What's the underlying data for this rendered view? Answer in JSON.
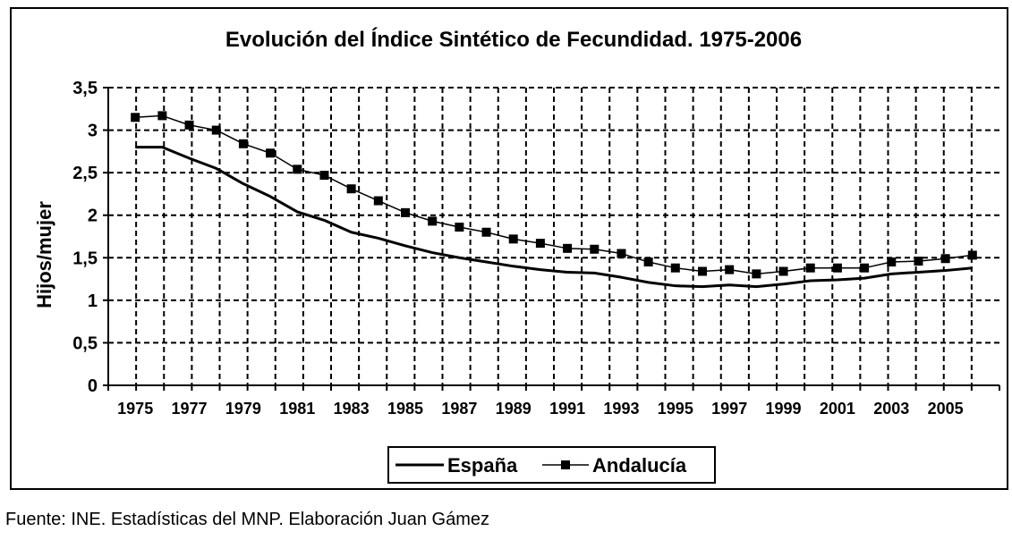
{
  "source_note": "Fuente: INE. Estadísticas del MNP. Elaboración Juan Gámez",
  "chart_data": {
    "type": "line",
    "title": "Evolución del Índice Sintético de Fecundidad. 1975-2006",
    "ylabel": "Hijos/mujer",
    "xlabel": "",
    "ylim": [
      0,
      3.5
    ],
    "y_ticks": [
      {
        "value": 0,
        "label": "0"
      },
      {
        "value": 0.5,
        "label": "0,5"
      },
      {
        "value": 1,
        "label": "1"
      },
      {
        "value": 1.5,
        "label": "1,5"
      },
      {
        "value": 2,
        "label": "2"
      },
      {
        "value": 2.5,
        "label": "2,5"
      },
      {
        "value": 3,
        "label": "3"
      },
      {
        "value": 3.5,
        "label": "3,5"
      }
    ],
    "x": [
      1975,
      1976,
      1977,
      1978,
      1979,
      1980,
      1981,
      1982,
      1983,
      1984,
      1985,
      1986,
      1987,
      1988,
      1989,
      1990,
      1991,
      1992,
      1993,
      1994,
      1995,
      1996,
      1997,
      1998,
      1999,
      2000,
      2001,
      2002,
      2003,
      2004,
      2005,
      2006
    ],
    "x_tick_labels": [
      "1975",
      "1977",
      "1979",
      "1981",
      "1983",
      "1985",
      "1987",
      "1989",
      "1991",
      "1993",
      "1995",
      "1997",
      "1999",
      "2001",
      "2003",
      "2005"
    ],
    "grid": true,
    "legend_position": "bottom-center",
    "series": [
      {
        "name": "España",
        "color": "#000000",
        "marker": "none",
        "values": [
          2.8,
          2.8,
          2.67,
          2.55,
          2.37,
          2.22,
          2.04,
          1.94,
          1.8,
          1.73,
          1.64,
          1.56,
          1.5,
          1.45,
          1.4,
          1.36,
          1.33,
          1.32,
          1.27,
          1.21,
          1.17,
          1.16,
          1.18,
          1.16,
          1.19,
          1.23,
          1.24,
          1.26,
          1.31,
          1.33,
          1.35,
          1.38
        ]
      },
      {
        "name": "Andalucía",
        "color": "#000000",
        "marker": "square",
        "values": [
          3.15,
          3.17,
          3.06,
          3.0,
          2.84,
          2.73,
          2.54,
          2.47,
          2.31,
          2.17,
          2.03,
          1.93,
          1.86,
          1.8,
          1.72,
          1.67,
          1.61,
          1.6,
          1.55,
          1.45,
          1.38,
          1.34,
          1.36,
          1.31,
          1.34,
          1.38,
          1.38,
          1.38,
          1.45,
          1.46,
          1.49,
          1.53
        ]
      }
    ]
  }
}
